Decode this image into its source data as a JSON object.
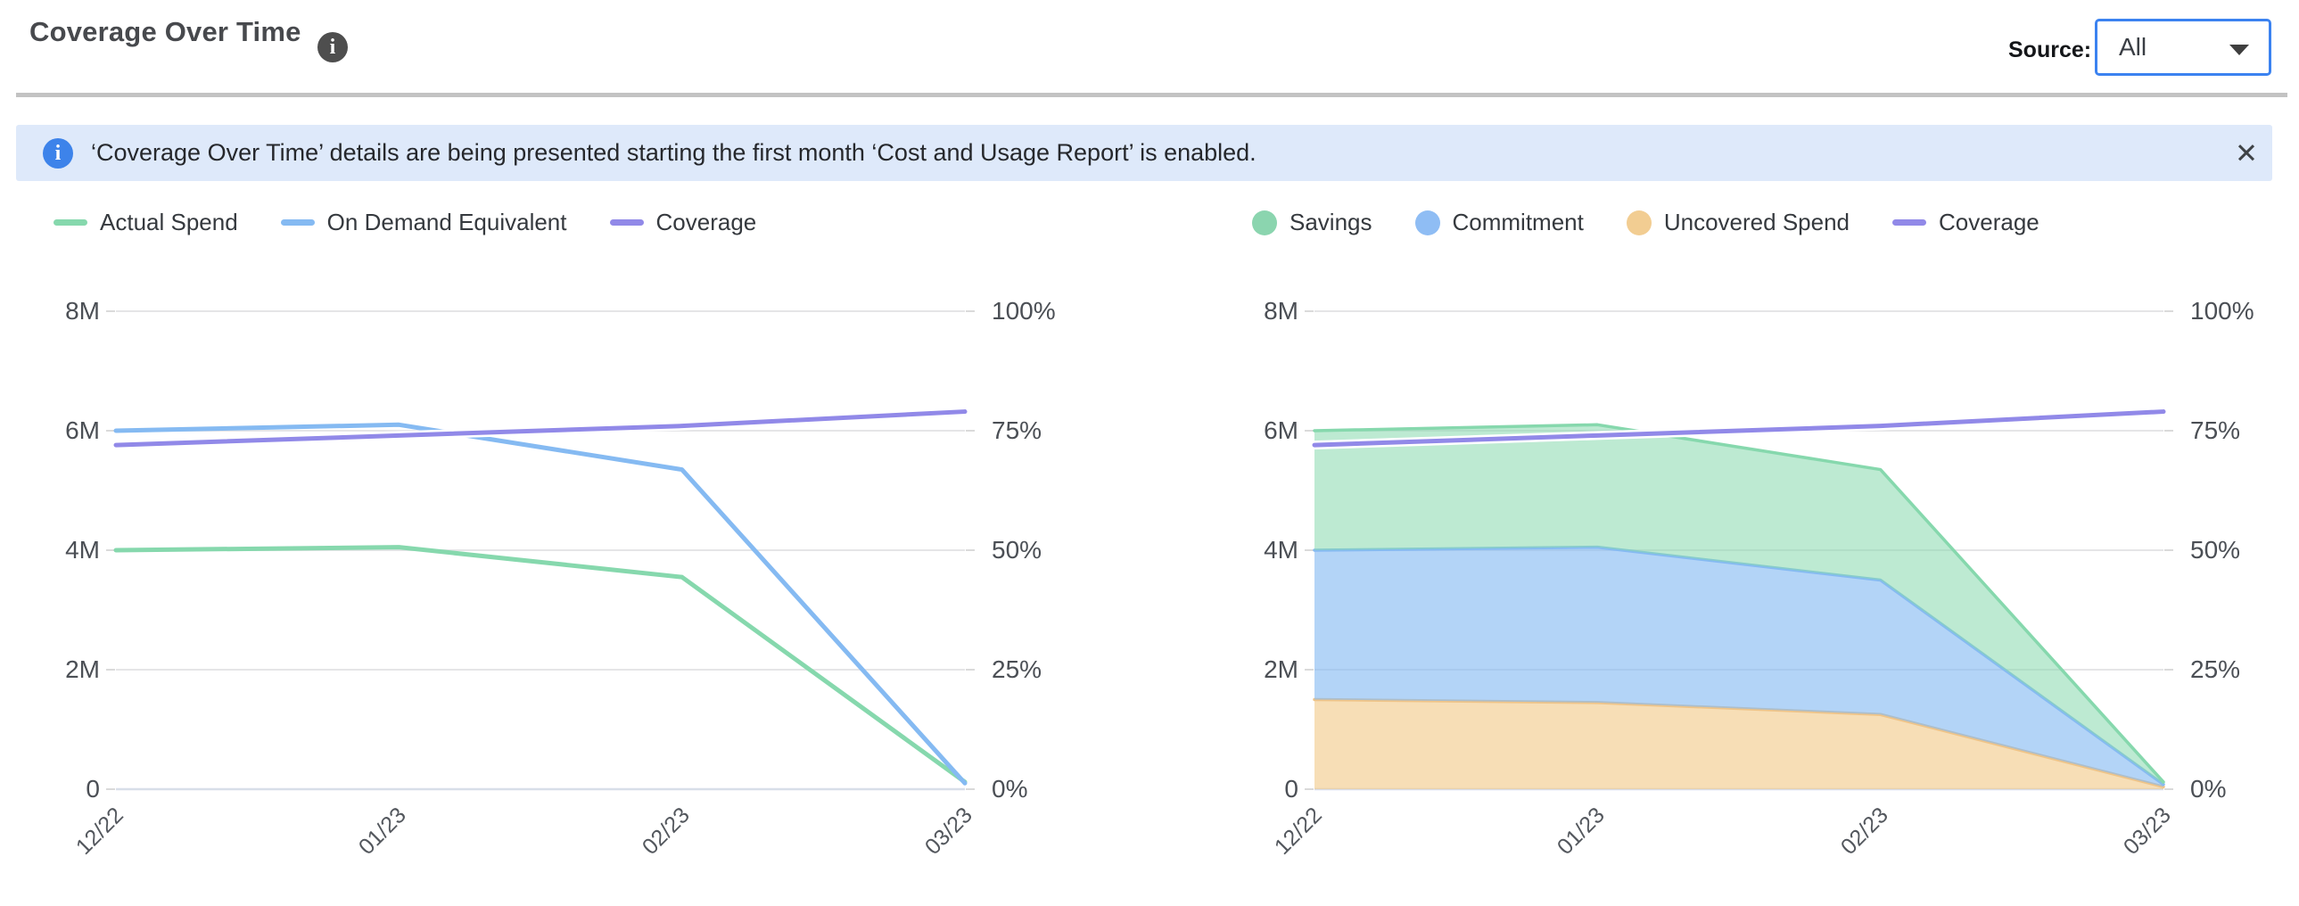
{
  "header": {
    "title": "Coverage Over Time",
    "source_label": "Source:",
    "source_value": "All"
  },
  "banner": {
    "message": "‘Coverage Over Time’ details are being presented starting the first month ‘Cost and Usage Report’ is enabled."
  },
  "icons": {
    "info": "i",
    "close": "✕"
  },
  "colors": {
    "accent_blue": "#3B82F0",
    "banner_bg": "#DEE9FA",
    "green": "#86D8AD",
    "blue": "#85BAF2",
    "purple": "#9189E8",
    "orange": "#EFC488"
  },
  "chart_data": [
    {
      "type": "line",
      "x": [
        "12/22",
        "01/23",
        "02/23",
        "03/23"
      ],
      "left_axis": {
        "max": 8,
        "unit": "M",
        "ticks": [
          {
            "v": 0,
            "label": "0"
          },
          {
            "v": 2,
            "label": "2M"
          },
          {
            "v": 4,
            "label": "4M"
          },
          {
            "v": 6,
            "label": "6M"
          },
          {
            "v": 8,
            "label": "8M"
          }
        ]
      },
      "right_axis": {
        "max": 100,
        "unit": "%",
        "ticks": [
          {
            "v": 0,
            "label": "0%"
          },
          {
            "v": 25,
            "label": "25%"
          },
          {
            "v": 50,
            "label": "50%"
          },
          {
            "v": 75,
            "label": "75%"
          },
          {
            "v": 100,
            "label": "100%"
          }
        ]
      },
      "legend": [
        {
          "label": "Actual Spend",
          "marker": "line",
          "color": "#86D8AD"
        },
        {
          "label": "On Demand Equivalent",
          "marker": "line",
          "color": "#85BAF2"
        },
        {
          "label": "Coverage",
          "marker": "line",
          "color": "#9189E8"
        }
      ],
      "series": [
        {
          "name": "Actual Spend",
          "kind": "line",
          "axis": "left",
          "color": "#86D8AD",
          "values": [
            4.0,
            4.05,
            3.55,
            0.12
          ]
        },
        {
          "name": "On Demand Equivalent",
          "kind": "line",
          "axis": "left",
          "color": "#85BAF2",
          "values": [
            6.0,
            6.1,
            5.35,
            0.1
          ]
        },
        {
          "name": "Coverage",
          "kind": "line",
          "axis": "right",
          "color": "#9189E8",
          "halo": true,
          "values": [
            72,
            74,
            76,
            79
          ]
        }
      ]
    },
    {
      "type": "area",
      "x": [
        "12/22",
        "01/23",
        "02/23",
        "03/23"
      ],
      "left_axis": {
        "max": 8,
        "unit": "M",
        "ticks": [
          {
            "v": 0,
            "label": "0"
          },
          {
            "v": 2,
            "label": "2M"
          },
          {
            "v": 4,
            "label": "4M"
          },
          {
            "v": 6,
            "label": "6M"
          },
          {
            "v": 8,
            "label": "8M"
          }
        ]
      },
      "right_axis": {
        "max": 100,
        "unit": "%",
        "ticks": [
          {
            "v": 0,
            "label": "0%"
          },
          {
            "v": 25,
            "label": "25%"
          },
          {
            "v": 50,
            "label": "50%"
          },
          {
            "v": 75,
            "label": "75%"
          },
          {
            "v": 100,
            "label": "100%"
          }
        ]
      },
      "legend": [
        {
          "label": "Savings",
          "marker": "circle",
          "color": "#8BD5AF"
        },
        {
          "label": "Commitment",
          "marker": "circle",
          "color": "#8FBDF4"
        },
        {
          "label": "Uncovered Spend",
          "marker": "circle",
          "color": "#F2CD92"
        },
        {
          "label": "Coverage",
          "marker": "line",
          "color": "#9189E8"
        }
      ],
      "series": [
        {
          "name": "Uncovered Spend",
          "kind": "area",
          "axis": "left",
          "color": "#EFC488",
          "fill": "rgba(242,201,137,0.62)",
          "values": [
            1.5,
            1.45,
            1.25,
            0.04
          ]
        },
        {
          "name": "Commitment",
          "kind": "area",
          "axis": "left",
          "color": "#85BAF2",
          "fill": "rgba(133,186,242,0.62)",
          "values": [
            2.5,
            2.6,
            2.25,
            0.04
          ]
        },
        {
          "name": "Savings",
          "kind": "area",
          "axis": "left",
          "color": "#86D8AD",
          "fill": "rgba(134,216,173,0.55)",
          "values": [
            2.0,
            2.05,
            1.85,
            0.04
          ]
        },
        {
          "name": "Coverage",
          "kind": "line",
          "axis": "right",
          "color": "#9189E8",
          "halo": true,
          "values": [
            72,
            74,
            76,
            79
          ]
        }
      ]
    }
  ]
}
